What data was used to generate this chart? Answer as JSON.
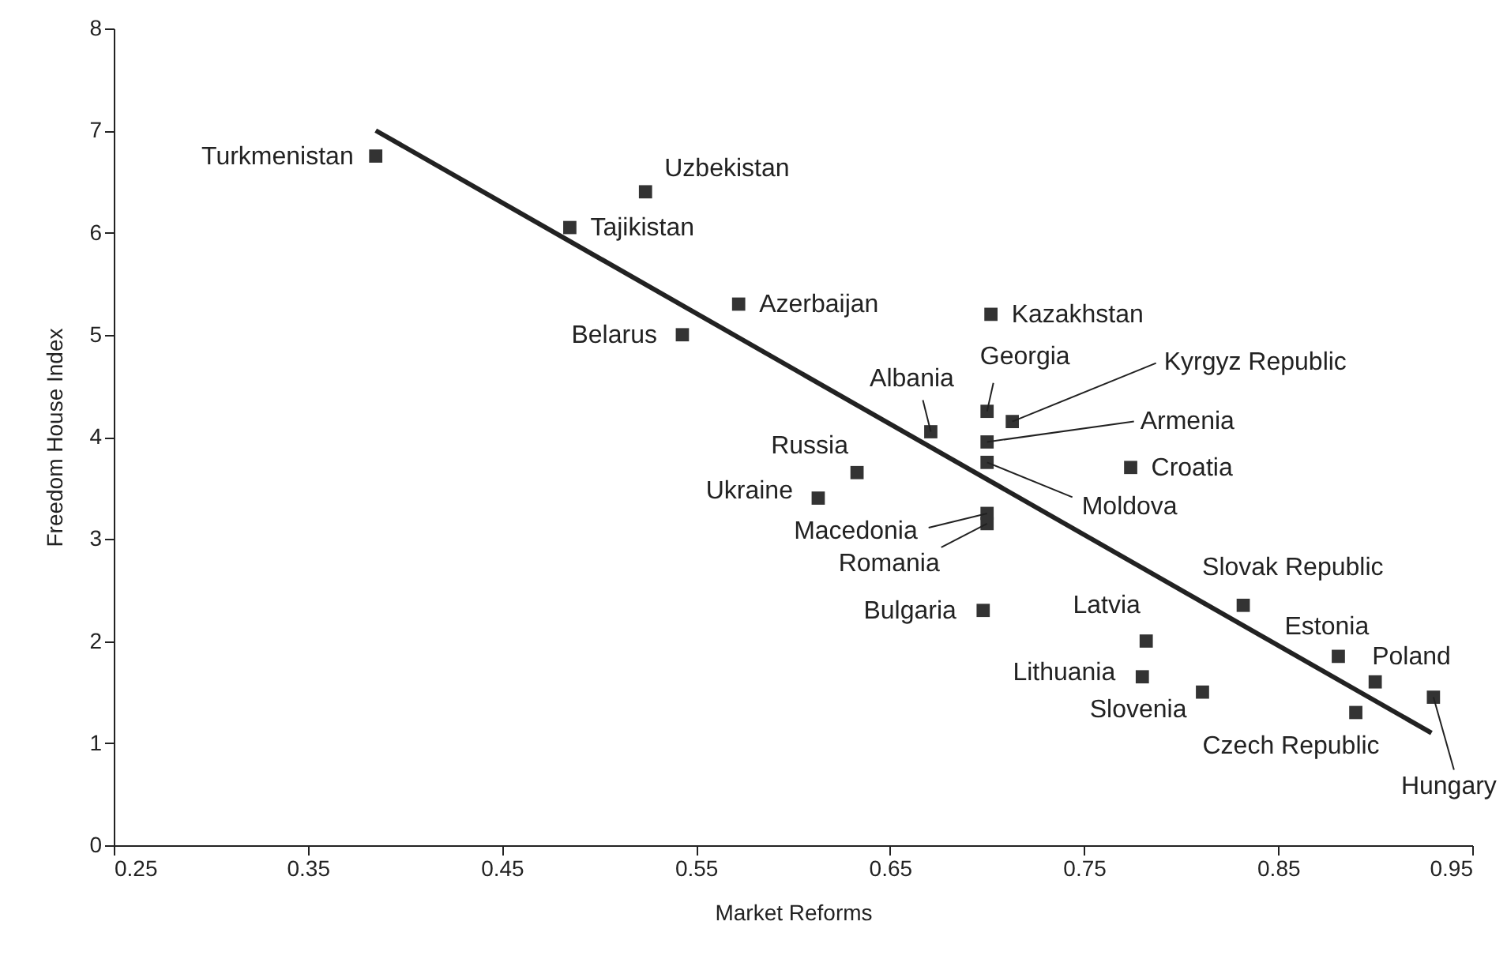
{
  "chart_data": {
    "type": "scatter",
    "xlabel": "Market Reforms",
    "ylabel": "Freedom House Index",
    "xlim": [
      0.25,
      0.95
    ],
    "xticks": [
      0.25,
      0.35,
      0.45,
      0.55,
      0.65,
      0.75,
      0.85,
      0.95
    ],
    "ylim": [
      0,
      8
    ],
    "yticks": [
      0,
      1,
      2,
      3,
      4,
      5,
      6,
      7,
      8
    ],
    "grid": false,
    "series": [
      {
        "marker": "square",
        "color": "#333333",
        "x": [
          0.385,
          0.524,
          0.485,
          0.543,
          0.572,
          0.702,
          0.7,
          0.713,
          0.671,
          0.7,
          0.7,
          0.774,
          0.633,
          0.613,
          0.7,
          0.7,
          0.698,
          0.832,
          0.782,
          0.881,
          0.78,
          0.9,
          0.811,
          0.93,
          0.89
        ],
        "values": [
          6.75,
          6.4,
          6.05,
          5.0,
          5.3,
          5.2,
          4.25,
          4.15,
          4.05,
          3.95,
          3.75,
          3.7,
          3.65,
          3.4,
          3.25,
          3.15,
          2.3,
          2.35,
          2.0,
          1.85,
          1.65,
          1.6,
          1.5,
          1.45,
          1.3
        ]
      },
      {
        "type": "line",
        "color": "#222222",
        "line_style": "solid",
        "x": [
          0.385,
          0.929
        ],
        "values": [
          7.0,
          1.1
        ]
      }
    ],
    "annotations": [
      {
        "text": "Turkmenistan",
        "x": 0.385,
        "y": 6.75
      },
      {
        "text": "Uzbekistan",
        "x": 0.524,
        "y": 6.4
      },
      {
        "text": "Tajikistan",
        "x": 0.485,
        "y": 6.05
      },
      {
        "text": "Belarus",
        "x": 0.543,
        "y": 5.0
      },
      {
        "text": "Azerbaijan",
        "x": 0.572,
        "y": 5.3
      },
      {
        "text": "Kazakhstan",
        "x": 0.702,
        "y": 5.2
      },
      {
        "text": "Georgia",
        "x": 0.7,
        "y": 4.25
      },
      {
        "text": "Kyrgyz Republic",
        "x": 0.713,
        "y": 4.15
      },
      {
        "text": "Albania",
        "x": 0.671,
        "y": 4.05
      },
      {
        "text": "Armenia",
        "x": 0.7,
        "y": 3.95
      },
      {
        "text": "Moldova",
        "x": 0.7,
        "y": 3.75
      },
      {
        "text": "Croatia",
        "x": 0.774,
        "y": 3.7
      },
      {
        "text": "Russia",
        "x": 0.633,
        "y": 3.65
      },
      {
        "text": "Ukraine",
        "x": 0.613,
        "y": 3.4
      },
      {
        "text": "Macedonia",
        "x": 0.7,
        "y": 3.25
      },
      {
        "text": "Romania",
        "x": 0.7,
        "y": 3.15
      },
      {
        "text": "Bulgaria",
        "x": 0.698,
        "y": 2.3
      },
      {
        "text": "Slovak Republic",
        "x": 0.832,
        "y": 2.35
      },
      {
        "text": "Latvia",
        "x": 0.782,
        "y": 2.0
      },
      {
        "text": "Estonia",
        "x": 0.881,
        "y": 1.85
      },
      {
        "text": "Lithuania",
        "x": 0.78,
        "y": 1.65
      },
      {
        "text": "Poland",
        "x": 0.9,
        "y": 1.6
      },
      {
        "text": "Slovenia",
        "x": 0.811,
        "y": 1.5
      },
      {
        "text": "Hungary",
        "x": 0.93,
        "y": 1.45
      },
      {
        "text": "Czech Republic",
        "x": 0.89,
        "y": 1.3
      }
    ]
  }
}
